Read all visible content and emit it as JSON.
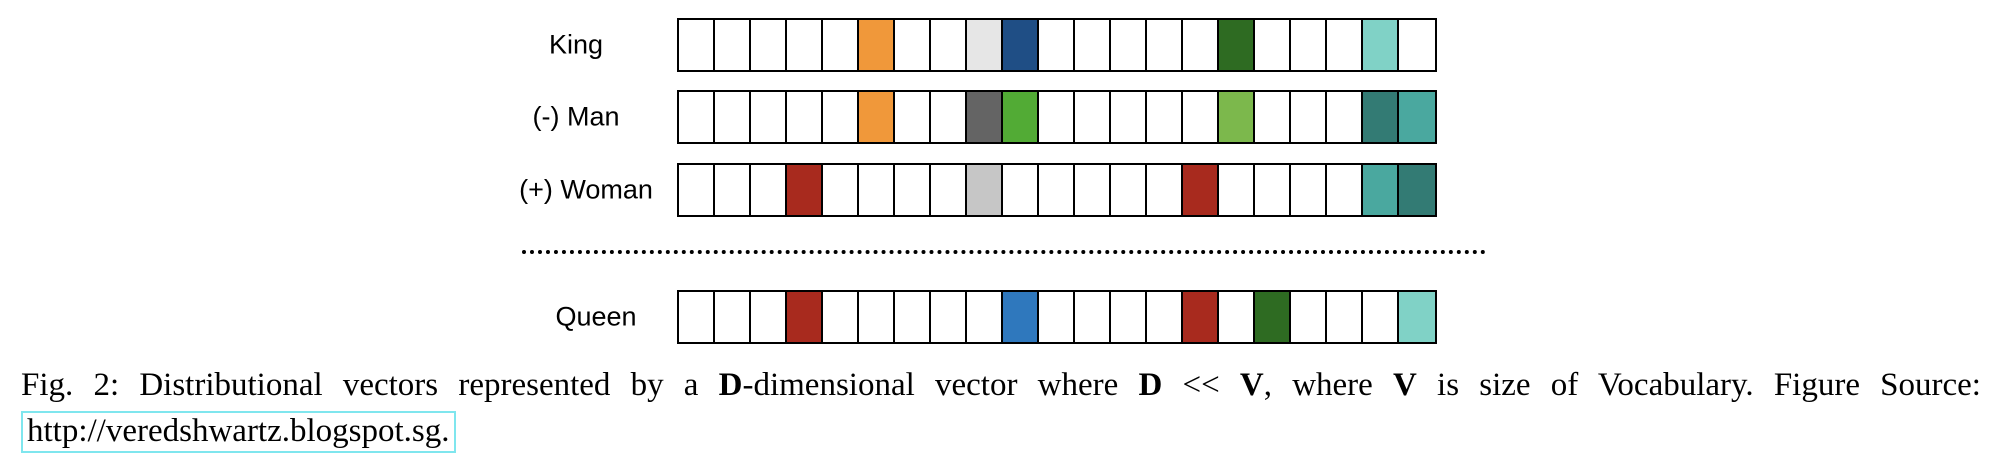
{
  "figure": {
    "palette": {
      "empty": "#ffffff",
      "orange": "#f0983a",
      "light_gray": "#e6e6e6",
      "dark_navy": "#1f4e85",
      "dark_green": "#2e6b22",
      "mint": "#80d2c6",
      "dark_gray": "#646464",
      "green": "#52ab35",
      "light_green": "#7cb84c",
      "dark_teal": "#337b74",
      "teal": "#4aa89f",
      "red": "#a82a1e",
      "silver": "#c6c6c6",
      "blue": "#2f78bd"
    },
    "vectors": [
      {
        "label": "King",
        "cells": [
          "empty",
          "empty",
          "empty",
          "empty",
          "empty",
          "orange",
          "empty",
          "empty",
          "light_gray",
          "dark_navy",
          "empty",
          "empty",
          "empty",
          "empty",
          "empty",
          "dark_green",
          "empty",
          "empty",
          "empty",
          "mint",
          "empty"
        ]
      },
      {
        "label": "(-) Man",
        "cells": [
          "empty",
          "empty",
          "empty",
          "empty",
          "empty",
          "orange",
          "empty",
          "empty",
          "dark_gray",
          "green",
          "empty",
          "empty",
          "empty",
          "empty",
          "empty",
          "light_green",
          "empty",
          "empty",
          "empty",
          "dark_teal",
          "teal"
        ]
      },
      {
        "label": "(+) Woman",
        "cells": [
          "empty",
          "empty",
          "empty",
          "red",
          "empty",
          "empty",
          "empty",
          "empty",
          "silver",
          "empty",
          "empty",
          "empty",
          "empty",
          "empty",
          "red",
          "empty",
          "empty",
          "empty",
          "empty",
          "teal",
          "dark_teal"
        ]
      },
      {
        "label": "Queen",
        "cells": [
          "empty",
          "empty",
          "empty",
          "red",
          "empty",
          "empty",
          "empty",
          "empty",
          "empty",
          "blue",
          "empty",
          "empty",
          "empty",
          "empty",
          "red",
          "empty",
          "dark_green",
          "empty",
          "empty",
          "empty",
          "mint"
        ]
      }
    ]
  },
  "caption": {
    "prefix": "Fig. 2: Distributional vectors represented by a ",
    "d1": "D",
    "mid1": "-dimensional vector where ",
    "d2": "D",
    "op": " << ",
    "v1": "V",
    "mid2": ", where ",
    "v2": "V",
    "mid3": " is size of Vocabulary. Figure Source: ",
    "link": "http://veredshwartz.blogspot.sg."
  }
}
